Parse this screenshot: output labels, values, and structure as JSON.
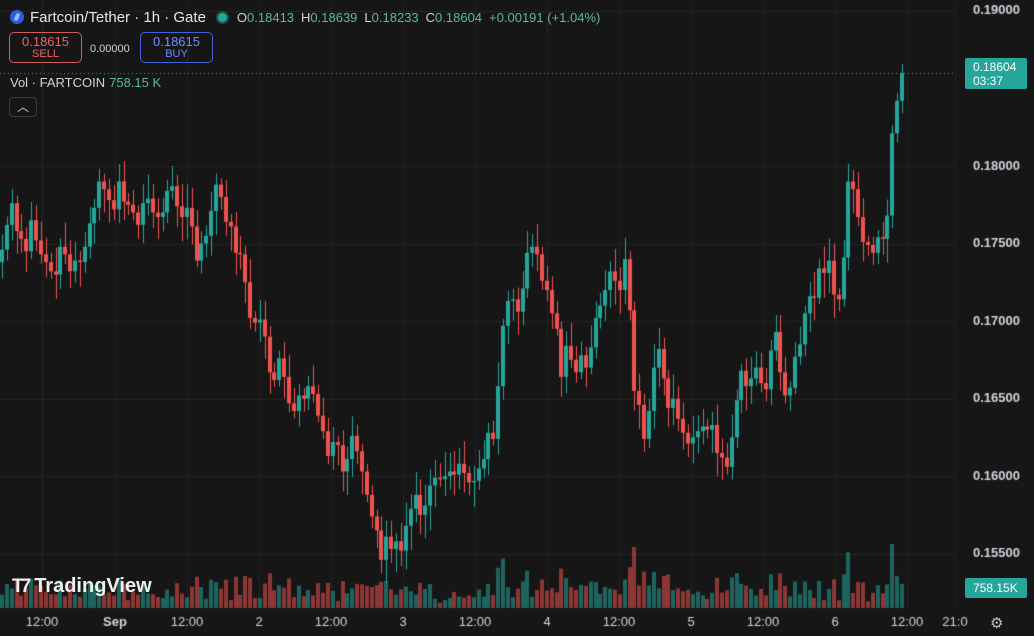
{
  "header": {
    "symbol": "Fartcoin/Tether · 1h · Gate",
    "ohlc": [
      {
        "k": "O",
        "v": "0.18413"
      },
      {
        "k": "H",
        "v": "0.18639"
      },
      {
        "k": "L",
        "v": "0.18233"
      },
      {
        "k": "C",
        "v": "0.18604"
      }
    ],
    "change": "+0.00191 (+1.04%)"
  },
  "trade": {
    "sell_price": "0.18615",
    "sell_label": "SELL",
    "spread": "0.00000",
    "buy_price": "0.18615",
    "buy_label": "BUY"
  },
  "volume": {
    "label": "Vol · FARTCOIN",
    "value": "758.15 K"
  },
  "last_price": {
    "value": "0.18604",
    "countdown": "03:37"
  },
  "volume_label": "758.15K",
  "logo_text": "TradingView",
  "colors": {
    "up": "#26a69a",
    "down": "#ef5350",
    "background": "#161616"
  },
  "chart_data": {
    "type": "candlestick",
    "title": "",
    "y_ticks": [
      "0.19000",
      "0.18000",
      "0.17500",
      "0.17000",
      "0.16500",
      "0.16000",
      "0.15500"
    ],
    "y_tick_values": [
      0.19,
      0.18,
      0.175,
      0.17,
      0.165,
      0.16,
      0.155
    ],
    "x_ticks": [
      "12:00",
      "Sep",
      "12:00",
      "2",
      "12:00",
      "3",
      "12:00",
      "4",
      "12:00",
      "5",
      "12:00",
      "6",
      "12:00",
      "21:0"
    ],
    "ylim": [
      0.1515,
      0.1907
    ],
    "grid": true,
    "close": [
      0.1746,
      0.1762,
      0.1776,
      0.1758,
      0.1753,
      0.1745,
      0.1765,
      0.1752,
      0.1743,
      0.1738,
      0.1732,
      0.173,
      0.1748,
      0.1743,
      0.1732,
      0.1739,
      0.1738,
      0.1748,
      0.1763,
      0.1773,
      0.179,
      0.1785,
      0.1778,
      0.1772,
      0.179,
      0.1777,
      0.1775,
      0.177,
      0.1762,
      0.1776,
      0.1779,
      0.177,
      0.1767,
      0.177,
      0.1784,
      0.1787,
      0.1774,
      0.1767,
      0.1773,
      0.1761,
      0.1739,
      0.175,
      0.1755,
      0.1771,
      0.1788,
      0.178,
      0.1764,
      0.1761,
      0.1744,
      0.1743,
      0.1725,
      0.1702,
      0.1699,
      0.1701,
      0.169,
      0.1667,
      0.1662,
      0.1676,
      0.1664,
      0.1647,
      0.1642,
      0.1652,
      0.165,
      0.1658,
      0.1653,
      0.1639,
      0.1629,
      0.1613,
      0.1622,
      0.162,
      0.1603,
      0.1611,
      0.1626,
      0.1616,
      0.1603,
      0.1588,
      0.1574,
      0.1565,
      0.1546,
      0.1561,
      0.1553,
      0.1558,
      0.1552,
      0.1568,
      0.1579,
      0.1588,
      0.1575,
      0.1581,
      0.1594,
      0.1599,
      0.1598,
      0.16,
      0.1603,
      0.1601,
      0.1608,
      0.1602,
      0.1596,
      0.1597,
      0.1605,
      0.1611,
      0.1628,
      0.1624,
      0.1658,
      0.1697,
      0.1713,
      0.1714,
      0.1706,
      0.1721,
      0.1744,
      0.1748,
      0.1743,
      0.1726,
      0.172,
      0.1705,
      0.1695,
      0.1664,
      0.1684,
      0.1675,
      0.1667,
      0.1678,
      0.167,
      0.1683,
      0.1702,
      0.171,
      0.172,
      0.1732,
      0.1726,
      0.172,
      0.174,
      0.1707,
      0.1655,
      0.1646,
      0.1624,
      0.1642,
      0.167,
      0.1682,
      0.1663,
      0.1644,
      0.165,
      0.1637,
      0.1628,
      0.1621,
      0.1625,
      0.1629,
      0.1632,
      0.163,
      0.1633,
      0.1615,
      0.1612,
      0.1606,
      0.1625,
      0.1649,
      0.1668,
      0.1658,
      0.1663,
      0.167,
      0.166,
      0.1656,
      0.1681,
      0.1693,
      0.1667,
      0.1652,
      0.1657,
      0.1677,
      0.1685,
      0.1705,
      0.1716,
      0.1715,
      0.1734,
      0.1731,
      0.1739,
      0.1717,
      0.1714,
      0.1741,
      0.179,
      0.1785,
      0.1767,
      0.1751,
      0.1749,
      0.1744,
      0.1754,
      0.1753,
      0.1768,
      0.1821,
      0.1842,
      0.186
    ],
    "volume_note": "volume histogram under candles; current bar 758.15K"
  }
}
